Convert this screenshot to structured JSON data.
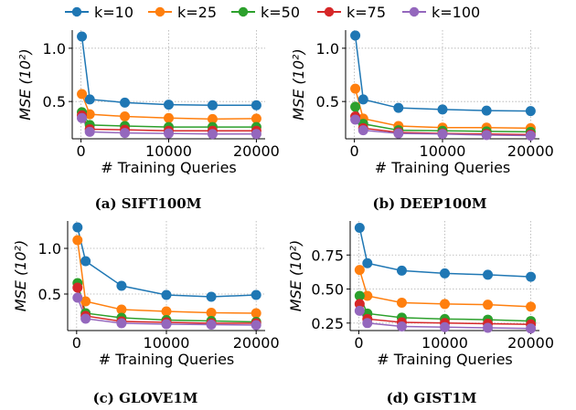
{
  "legend": {
    "placement": "top-center",
    "entries": [
      {
        "label": "k=10",
        "color": "#1f77b4"
      },
      {
        "label": "k=25",
        "color": "#ff7f0e"
      },
      {
        "label": "k=50",
        "color": "#2ca02c"
      },
      {
        "label": "k=75",
        "color": "#d62728"
      },
      {
        "label": "k=100",
        "color": "#9467bd"
      }
    ]
  },
  "chart_data": [
    {
      "type": "line",
      "caption": "(a) SIFT100M",
      "xlabel": "# Training Queries",
      "ylabel": "MSE (10²)",
      "xlim": [
        -1000,
        21000
      ],
      "ylim": [
        0.15,
        1.17
      ],
      "xticks": [
        0,
        10000,
        20000
      ],
      "xtick_labels": [
        "0",
        "10000",
        "20000"
      ],
      "yticks": [
        0.5,
        1.0
      ],
      "ytick_labels": [
        "0.5",
        "1.0"
      ],
      "grid": true,
      "x": [
        100,
        1000,
        5000,
        10000,
        15000,
        20000
      ],
      "series": [
        {
          "name": "k=10",
          "values": [
            1.11,
            0.52,
            0.49,
            0.47,
            0.465,
            0.465
          ]
        },
        {
          "name": "k=25",
          "values": [
            0.57,
            0.38,
            0.36,
            0.345,
            0.335,
            0.34
          ]
        },
        {
          "name": "k=50",
          "values": [
            0.4,
            0.28,
            0.27,
            0.26,
            0.26,
            0.26
          ]
        },
        {
          "name": "k=75",
          "values": [
            0.37,
            0.24,
            0.235,
            0.225,
            0.225,
            0.225
          ]
        },
        {
          "name": "k=100",
          "values": [
            0.345,
            0.215,
            0.205,
            0.2,
            0.195,
            0.195
          ]
        }
      ]
    },
    {
      "type": "line",
      "caption": "(b) DEEP100M",
      "xlabel": "# Training Queries",
      "ylabel": "MSE (10²)",
      "xlim": [
        -1000,
        21000
      ],
      "ylim": [
        0.15,
        1.17
      ],
      "xticks": [
        0,
        10000,
        20000
      ],
      "xtick_labels": [
        "0",
        "10000",
        "20000"
      ],
      "yticks": [
        0.5,
        1.0
      ],
      "ytick_labels": [
        "0.5",
        "1.0"
      ],
      "grid": true,
      "x": [
        100,
        1000,
        5000,
        10000,
        15000,
        20000
      ],
      "series": [
        {
          "name": "k=10",
          "values": [
            1.12,
            0.52,
            0.44,
            0.425,
            0.415,
            0.41
          ]
        },
        {
          "name": "k=25",
          "values": [
            0.62,
            0.34,
            0.27,
            0.255,
            0.255,
            0.25
          ]
        },
        {
          "name": "k=50",
          "values": [
            0.45,
            0.29,
            0.23,
            0.225,
            0.22,
            0.215
          ]
        },
        {
          "name": "k=75",
          "values": [
            0.36,
            0.25,
            0.21,
            0.2,
            0.195,
            0.19
          ]
        },
        {
          "name": "k=100",
          "values": [
            0.33,
            0.23,
            0.2,
            0.195,
            0.185,
            0.18
          ]
        }
      ]
    },
    {
      "type": "line",
      "caption": "(c) GLOVE1M",
      "xlabel": "# Training Queries",
      "ylabel": "MSE (10²)",
      "xlim": [
        -1000,
        21000
      ],
      "ylim": [
        0.1,
        1.3
      ],
      "xticks": [
        0,
        10000,
        20000
      ],
      "xtick_labels": [
        "0",
        "10000",
        "20000"
      ],
      "yticks": [
        0.5,
        1.0
      ],
      "ytick_labels": [
        "0.5",
        "1.0"
      ],
      "grid": true,
      "x": [
        100,
        1000,
        5000,
        10000,
        15000,
        20000
      ],
      "series": [
        {
          "name": "k=10",
          "values": [
            1.23,
            0.86,
            0.59,
            0.49,
            0.47,
            0.49
          ]
        },
        {
          "name": "k=25",
          "values": [
            1.09,
            0.42,
            0.33,
            0.31,
            0.295,
            0.29
          ]
        },
        {
          "name": "k=50",
          "values": [
            0.62,
            0.29,
            0.24,
            0.215,
            0.205,
            0.195
          ]
        },
        {
          "name": "k=75",
          "values": [
            0.57,
            0.26,
            0.2,
            0.19,
            0.18,
            0.18
          ]
        },
        {
          "name": "k=100",
          "values": [
            0.46,
            0.23,
            0.18,
            0.17,
            0.165,
            0.16
          ]
        }
      ]
    },
    {
      "type": "line",
      "caption": "(d) GIST1M",
      "xlabel": "# Training Queries",
      "ylabel": "MSE (10²)",
      "xlim": [
        -1000,
        21000
      ],
      "ylim": [
        0.195,
        1.0
      ],
      "xticks": [
        0,
        10000,
        20000
      ],
      "xtick_labels": [
        "0",
        "10000",
        "20000"
      ],
      "yticks": [
        0.25,
        0.5,
        0.75
      ],
      "ytick_labels": [
        "0.25",
        "0.50",
        "0.75"
      ],
      "grid": true,
      "x": [
        100,
        1000,
        5000,
        10000,
        15000,
        20000
      ],
      "series": [
        {
          "name": "k=10",
          "values": [
            0.95,
            0.69,
            0.635,
            0.615,
            0.605,
            0.59
          ]
        },
        {
          "name": "k=25",
          "values": [
            0.64,
            0.45,
            0.4,
            0.39,
            0.385,
            0.37
          ]
        },
        {
          "name": "k=50",
          "values": [
            0.45,
            0.32,
            0.29,
            0.28,
            0.275,
            0.265
          ]
        },
        {
          "name": "k=75",
          "values": [
            0.39,
            0.28,
            0.255,
            0.25,
            0.245,
            0.24
          ]
        },
        {
          "name": "k=100",
          "values": [
            0.34,
            0.25,
            0.225,
            0.22,
            0.215,
            0.21
          ]
        }
      ]
    }
  ]
}
